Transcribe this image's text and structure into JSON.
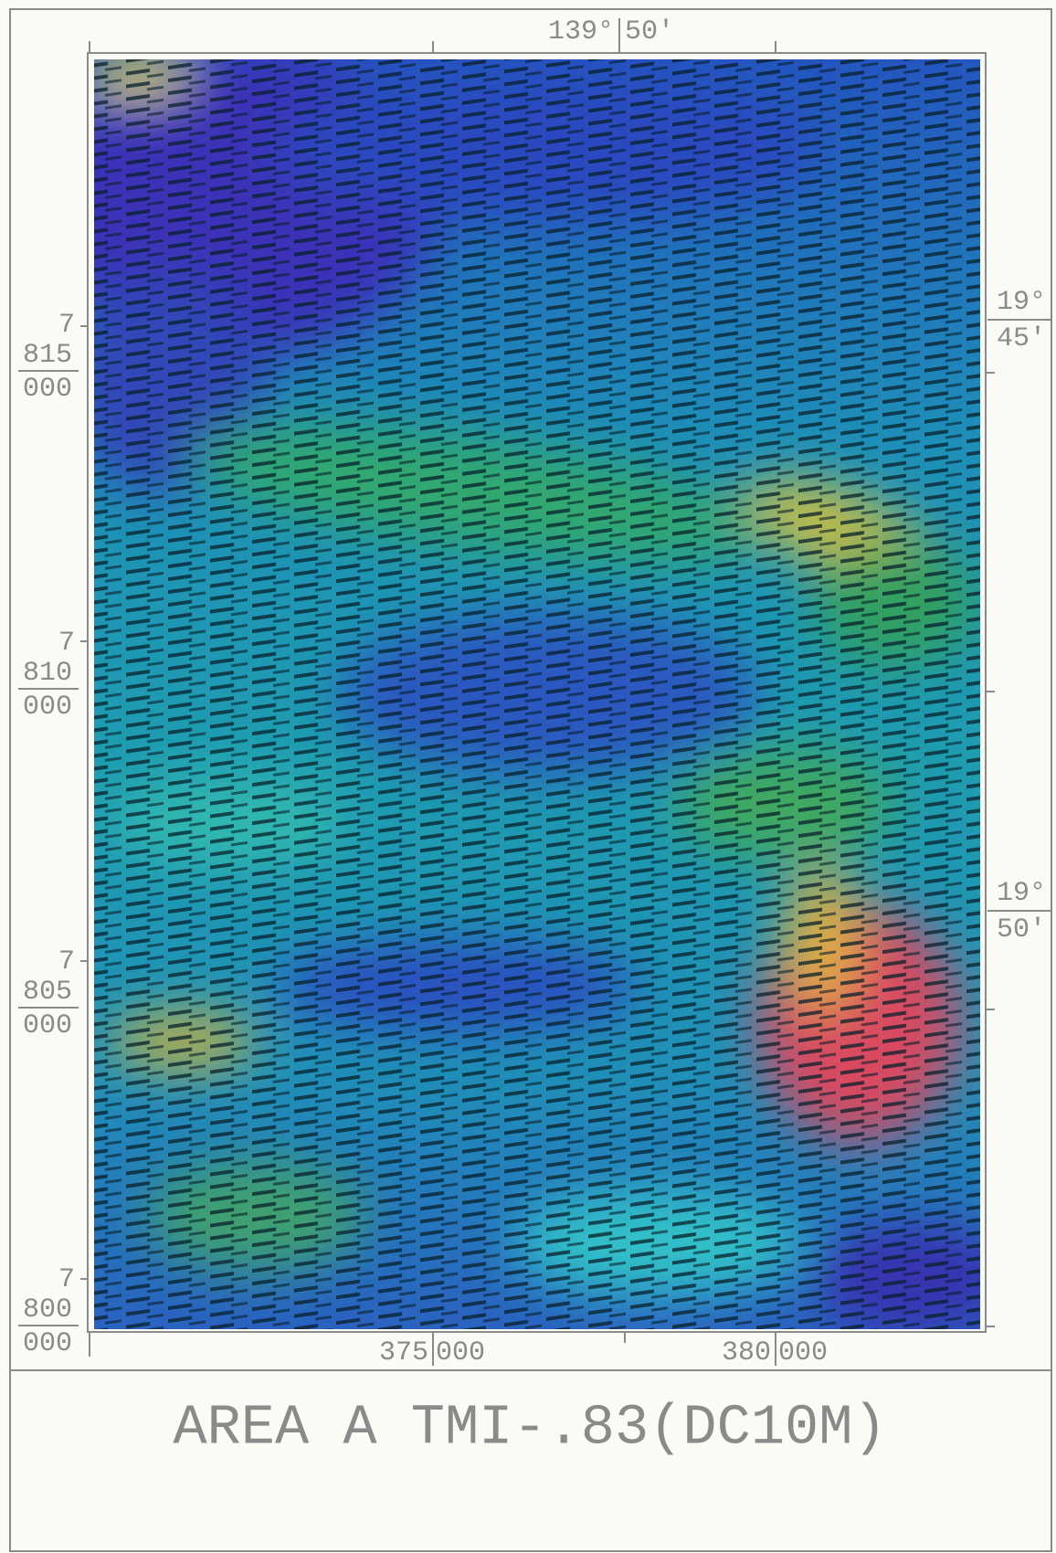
{
  "map": {
    "title": "AREA A TMI-.83(DC10M)",
    "top_label": {
      "degrees": "139°",
      "minutes": "50'"
    },
    "left_labels": [
      {
        "prefix": "7",
        "main": "815",
        "sub": "000"
      },
      {
        "prefix": "7",
        "main": "810",
        "sub": "000"
      },
      {
        "prefix": "7",
        "main": "805",
        "sub": "000"
      },
      {
        "prefix": "7",
        "main": "800",
        "sub": "000"
      }
    ],
    "right_labels": [
      {
        "degrees": "19°",
        "minutes": "45'"
      },
      {
        "degrees": "19°",
        "minutes": "50'"
      }
    ],
    "bottom_labels": [
      {
        "main": "375",
        "sub": "000"
      },
      {
        "main": "380",
        "sub": "000"
      }
    ]
  }
}
